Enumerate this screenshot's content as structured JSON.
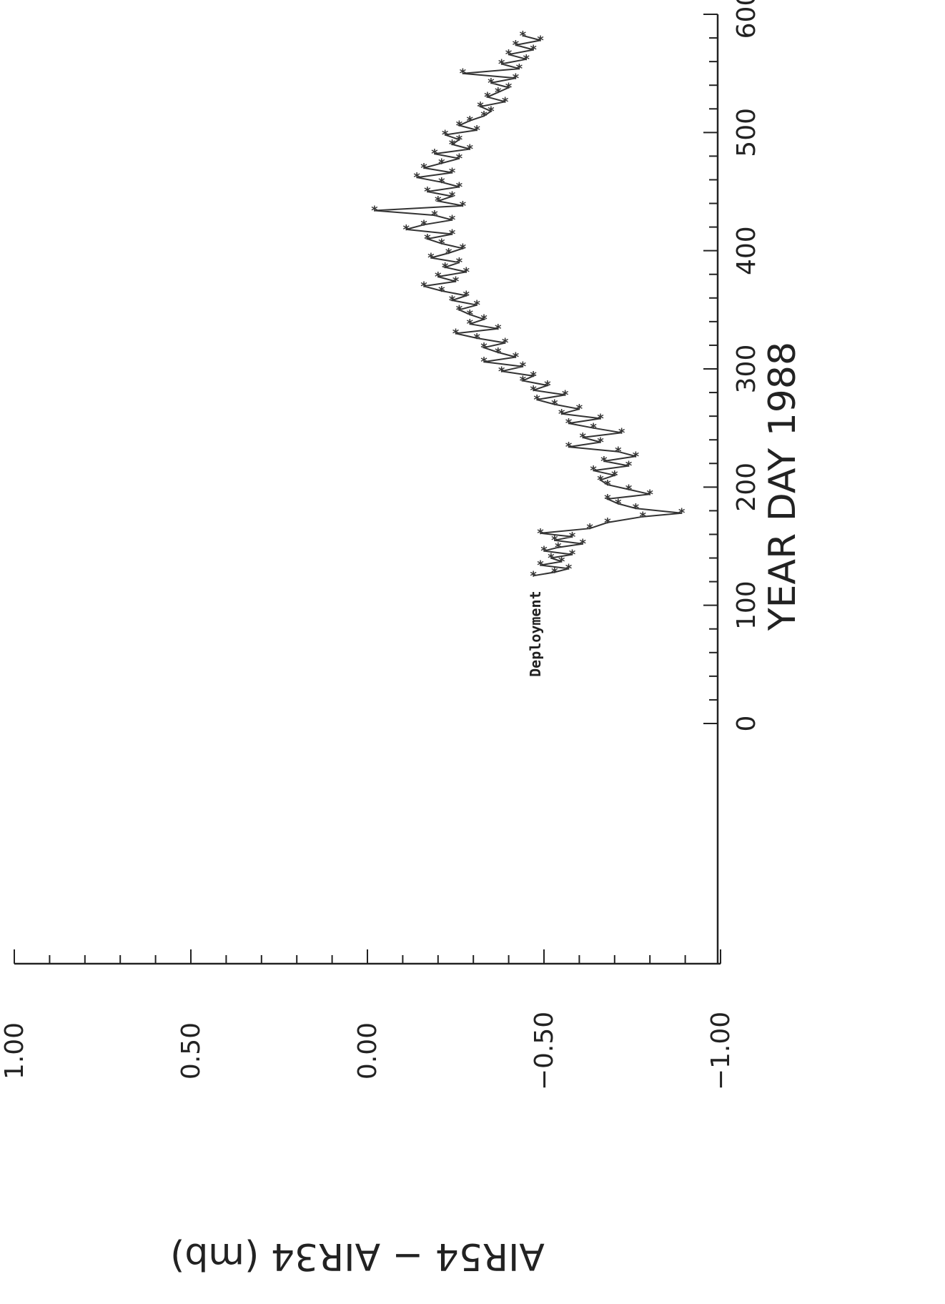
{
  "chart_data": {
    "type": "line",
    "xlabel": "YEAR DAY 1988",
    "ylabel": "AIR54 − AIR34 (mb)",
    "xlim": [
      0,
      600
    ],
    "ylim": [
      -1.0,
      1.0
    ],
    "x_ticks": [
      "0",
      "100",
      "200",
      "300",
      "400",
      "500",
      "600"
    ],
    "y_ticks": [
      "−1.00",
      "−0.50",
      "0.00",
      "0.50",
      "1.00"
    ],
    "annotations": [
      {
        "text": "Deployment",
        "x": 100,
        "y": -0.49
      }
    ],
    "grid": false,
    "series": [
      {
        "marker": "*",
        "x": [
          125,
          128,
          131,
          134,
          137,
          140,
          143,
          146,
          149,
          152,
          155,
          158,
          161,
          165,
          170,
          175,
          178,
          182,
          186,
          190,
          194,
          198,
          202,
          206,
          210,
          214,
          218,
          222,
          226,
          230,
          234,
          238,
          242,
          246,
          250,
          254,
          258,
          262,
          266,
          270,
          274,
          278,
          282,
          286,
          290,
          294,
          298,
          302,
          306,
          310,
          314,
          318,
          322,
          326,
          330,
          334,
          338,
          342,
          346,
          350,
          354,
          358,
          362,
          366,
          370,
          374,
          378,
          382,
          386,
          390,
          394,
          398,
          402,
          406,
          410,
          414,
          418,
          422,
          426,
          430,
          434,
          438,
          442,
          446,
          450,
          454,
          458,
          462,
          466,
          470,
          474,
          478,
          482,
          486,
          490,
          494,
          498,
          502,
          506,
          510,
          514,
          518,
          522,
          526,
          530,
          534,
          538,
          542,
          546,
          550,
          554,
          558,
          562,
          566,
          570,
          574,
          578,
          582
        ],
        "y": [
          -0.47,
          -0.53,
          -0.57,
          -0.49,
          -0.55,
          -0.52,
          -0.58,
          -0.5,
          -0.54,
          -0.61,
          -0.53,
          -0.58,
          -0.49,
          -0.63,
          -0.68,
          -0.78,
          -0.89,
          -0.76,
          -0.71,
          -0.68,
          -0.8,
          -0.74,
          -0.68,
          -0.66,
          -0.7,
          -0.64,
          -0.74,
          -0.67,
          -0.76,
          -0.71,
          -0.57,
          -0.66,
          -0.61,
          -0.72,
          -0.64,
          -0.57,
          -0.66,
          -0.55,
          -0.6,
          -0.53,
          -0.48,
          -0.56,
          -0.47,
          -0.51,
          -0.44,
          -0.47,
          -0.38,
          -0.44,
          -0.33,
          -0.42,
          -0.37,
          -0.33,
          -0.39,
          -0.31,
          -0.25,
          -0.37,
          -0.29,
          -0.33,
          -0.29,
          -0.26,
          -0.31,
          -0.24,
          -0.28,
          -0.21,
          -0.16,
          -0.25,
          -0.2,
          -0.28,
          -0.22,
          -0.26,
          -0.18,
          -0.23,
          -0.27,
          -0.21,
          -0.17,
          -0.24,
          -0.11,
          -0.16,
          -0.24,
          -0.19,
          -0.02,
          -0.27,
          -0.2,
          -0.24,
          -0.17,
          -0.26,
          -0.21,
          -0.14,
          -0.24,
          -0.16,
          -0.21,
          -0.26,
          -0.19,
          -0.29,
          -0.24,
          -0.26,
          -0.22,
          -0.31,
          -0.26,
          -0.29,
          -0.33,
          -0.35,
          -0.32,
          -0.39,
          -0.34,
          -0.37,
          -0.4,
          -0.35,
          -0.42,
          -0.27,
          -0.43,
          -0.38,
          -0.45,
          -0.4,
          -0.47,
          -0.42,
          -0.49,
          -0.44
        ]
      }
    ]
  }
}
